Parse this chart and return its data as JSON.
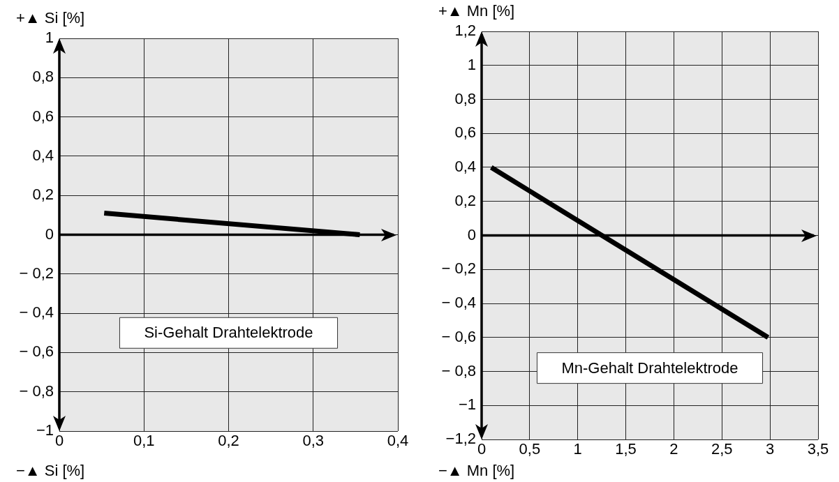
{
  "chart_data": [
    {
      "type": "line",
      "ylabel": "+▲ Si [%]",
      "xlabel": "−▲ Si [%]",
      "annotations": [
        "Si-Gehalt Drahtelektrode"
      ],
      "xlim": [
        0,
        0.4
      ],
      "xticks": [
        {
          "value": 0,
          "label": "0"
        },
        {
          "value": 0.1,
          "label": "0,1"
        },
        {
          "value": 0.2,
          "label": "0,2"
        },
        {
          "value": 0.3,
          "label": "0,3"
        },
        {
          "value": 0.4,
          "label": "0,4"
        }
      ],
      "ylim": [
        -1,
        1
      ],
      "yticks": [
        {
          "value": -1,
          "label": "−1"
        },
        {
          "value": -0.8,
          "label": "− 0,8"
        },
        {
          "value": -0.6,
          "label": "− 0,6"
        },
        {
          "value": -0.4,
          "label": "− 0,4"
        },
        {
          "value": -0.2,
          "label": "− 0,2"
        },
        {
          "value": 0,
          "label": "0"
        },
        {
          "value": 0.2,
          "label": "0,2"
        },
        {
          "value": 0.4,
          "label": "0,4"
        },
        {
          "value": 0.6,
          "label": "0,6"
        },
        {
          "value": 0.8,
          "label": "0,8"
        },
        1
      ],
      "grid": true,
      "legend": false,
      "marker": "none",
      "series": [
        {
          "color": "#000000",
          "x": [
            0.053,
            0.355
          ],
          "values": [
            0.11,
            0.0
          ]
        }
      ]
    },
    {
      "type": "line",
      "ylabel": "+▲ Mn [%]",
      "xlabel": "−▲ Mn [%]",
      "annotations": [
        "Mn-Gehalt Drahtelektrode"
      ],
      "xlim": [
        0,
        3.5
      ],
      "xticks": [
        {
          "value": 0,
          "label": "0"
        },
        {
          "value": 0.5,
          "label": "0,5"
        },
        1,
        {
          "value": 1.5,
          "label": "1,5"
        },
        2,
        {
          "value": 2.5,
          "label": "2,5"
        },
        3,
        {
          "value": 3.5,
          "label": "3,5"
        }
      ],
      "ylim": [
        -1.2,
        1.2
      ],
      "yticks": [
        {
          "value": -1.2,
          "label": "−1,2"
        },
        {
          "value": -1,
          "label": "−1"
        },
        {
          "value": -0.8,
          "label": "− 0,8"
        },
        {
          "value": -0.6,
          "label": "− 0,6"
        },
        {
          "value": -0.4,
          "label": "− 0,4"
        },
        {
          "value": -0.2,
          "label": "− 0,2"
        },
        {
          "value": 0,
          "label": "0"
        },
        {
          "value": 0.2,
          "label": "0,2"
        },
        {
          "value": 0.4,
          "label": "0,4"
        },
        {
          "value": 0.6,
          "label": "0,6"
        },
        {
          "value": 0.8,
          "label": "0,8"
        },
        1,
        {
          "value": 1.2,
          "label": "1,2"
        }
      ],
      "grid": true,
      "legend": false,
      "marker": "none",
      "series": [
        {
          "color": "#000000",
          "x": [
            0.1,
            2.98
          ],
          "values": [
            0.4,
            -0.6
          ]
        }
      ]
    }
  ]
}
